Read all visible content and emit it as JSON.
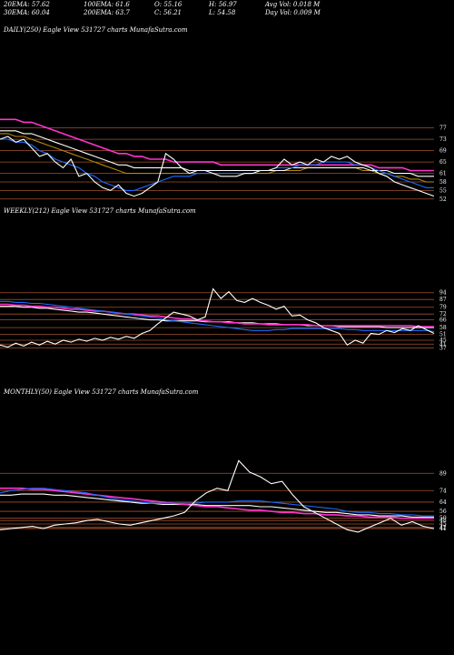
{
  "header": {
    "row1": [
      "20EMA: 57.62",
      "100EMA: 61.6",
      "O: 55.16",
      "H: 56.97",
      "Avg Vol: 0.018  M"
    ],
    "row2": [
      "30EMA: 60.04",
      "200EMA: 63.7",
      "C: 56.21",
      "L: 54.58",
      "Day Vol: 0.009 M"
    ]
  },
  "chart_data": [
    {
      "type": "line",
      "label": "DAILY(250) Eagle  View  531727 charts MunafaSutra.com",
      "ylim": [
        50,
        82
      ],
      "yticks": [
        "77",
        "73",
        "69",
        "65",
        "61",
        "58",
        "55",
        "52"
      ],
      "yticks_values": [
        77,
        73,
        69,
        65,
        61,
        58,
        55,
        52
      ],
      "series": [
        {
          "name": "price",
          "color": "#ffffff",
          "values": [
            73,
            74,
            72,
            73,
            70,
            67,
            68,
            65,
            63,
            66,
            60,
            61,
            58,
            56,
            55,
            57,
            54,
            53,
            54,
            56,
            58,
            68,
            66,
            63,
            61,
            62,
            62,
            61,
            60,
            60,
            60,
            61,
            61,
            62,
            62,
            63,
            66,
            64,
            65,
            64,
            66,
            65,
            67,
            66,
            67,
            65,
            64,
            63,
            61,
            60,
            58,
            57,
            56,
            55,
            54,
            53
          ]
        },
        {
          "name": "ema-fast",
          "color": "#1a6bff",
          "values": [
            73,
            73,
            72,
            72,
            71,
            69,
            68,
            66,
            65,
            64,
            63,
            61,
            60,
            58,
            57,
            56,
            55,
            55,
            56,
            57,
            58,
            59,
            60,
            60,
            60,
            61,
            61,
            61,
            61,
            61,
            61,
            61,
            61,
            62,
            62,
            63,
            63,
            63,
            64,
            64,
            64,
            65,
            65,
            65,
            65,
            64,
            64,
            63,
            62,
            61,
            60,
            59,
            58,
            57,
            56,
            56
          ]
        },
        {
          "name": "ema-200",
          "color": "#ff33cc",
          "values": [
            80,
            80,
            80,
            79,
            79,
            78,
            77,
            76,
            75,
            74,
            73,
            72,
            71,
            70,
            69,
            68,
            68,
            67,
            67,
            66,
            66,
            66,
            65,
            65,
            65,
            65,
            65,
            65,
            64,
            64,
            64,
            64,
            64,
            64,
            64,
            64,
            64,
            64,
            64,
            64,
            64,
            64,
            64,
            64,
            64,
            64,
            64,
            64,
            63,
            63,
            63,
            63,
            62,
            62,
            62,
            62
          ]
        },
        {
          "name": "ema-100",
          "color": "#ffffff",
          "values": [
            76,
            76,
            76,
            75,
            75,
            74,
            73,
            72,
            71,
            70,
            69,
            68,
            67,
            66,
            65,
            64,
            64,
            63,
            63,
            63,
            63,
            63,
            63,
            63,
            62,
            62,
            62,
            62,
            62,
            62,
            62,
            62,
            62,
            62,
            62,
            62,
            62,
            63,
            63,
            63,
            63,
            63,
            63,
            63,
            63,
            63,
            63,
            62,
            62,
            62,
            61,
            61,
            61,
            60,
            60,
            60
          ]
        },
        {
          "name": "ema-50",
          "color": "#b8860b",
          "values": [
            75,
            75,
            74,
            74,
            73,
            72,
            71,
            70,
            69,
            68,
            67,
            66,
            65,
            64,
            63,
            62,
            61,
            61,
            61,
            61,
            61,
            61,
            61,
            61,
            61,
            61,
            61,
            61,
            61,
            61,
            61,
            61,
            61,
            61,
            61,
            62,
            62,
            62,
            62,
            63,
            63,
            63,
            63,
            63,
            63,
            63,
            62,
            62,
            61,
            61,
            60,
            60,
            59,
            59,
            58,
            58
          ]
        }
      ]
    },
    {
      "type": "line",
      "label": "WEEKLY(212) Eagle  View  531727 charts MunafaSutra.com",
      "ylim": [
        30,
        105
      ],
      "yticks": [
        "94",
        "87",
        "79",
        "72",
        "66",
        "58",
        "51",
        "45",
        "41",
        "37"
      ],
      "yticks_values": [
        94,
        87,
        79,
        72,
        66,
        58,
        51,
        45,
        41,
        37
      ],
      "series": [
        {
          "name": "price",
          "color": "#ffffff",
          "values": [
            40,
            38,
            42,
            39,
            43,
            40,
            44,
            41,
            45,
            43,
            46,
            44,
            47,
            45,
            48,
            46,
            49,
            47,
            52,
            55,
            62,
            68,
            74,
            72,
            70,
            66,
            69,
            98,
            88,
            95,
            86,
            84,
            88,
            84,
            81,
            77,
            80,
            70,
            71,
            66,
            63,
            58,
            55,
            52,
            40,
            45,
            42,
            52,
            51,
            55,
            53,
            57,
            55,
            60,
            56,
            52
          ]
        },
        {
          "name": "ema-fast",
          "color": "#1a6bff",
          "values": [
            85,
            85,
            84,
            84,
            83,
            83,
            82,
            81,
            80,
            79,
            78,
            77,
            76,
            75,
            74,
            73,
            72,
            71,
            70,
            69,
            68,
            66,
            65,
            64,
            63,
            62,
            61,
            60,
            59,
            58,
            57,
            56,
            55,
            55,
            55,
            56,
            56,
            57,
            57,
            57,
            57,
            57,
            57,
            57,
            56,
            56,
            55,
            55,
            55,
            55,
            55,
            55,
            55,
            55,
            55,
            54
          ]
        },
        {
          "name": "ema-200",
          "color": "#ff33cc",
          "values": [
            82,
            82,
            81,
            81,
            80,
            80,
            79,
            79,
            78,
            77,
            77,
            76,
            75,
            75,
            74,
            73,
            72,
            72,
            71,
            70,
            70,
            69,
            68,
            67,
            67,
            66,
            65,
            64,
            64,
            63,
            63,
            62,
            62,
            62,
            61,
            61,
            61,
            61,
            61,
            61,
            60,
            60,
            60,
            60,
            60,
            60,
            60,
            60,
            60,
            60,
            60,
            60,
            60,
            59,
            59,
            59
          ]
        },
        {
          "name": "ema-100",
          "color": "#ffffff",
          "values": [
            80,
            80,
            80,
            79,
            79,
            78,
            78,
            77,
            76,
            75,
            74,
            74,
            73,
            72,
            71,
            70,
            69,
            68,
            67,
            66,
            66,
            65,
            65,
            65,
            65,
            65,
            64,
            64,
            64,
            64,
            63,
            63,
            63,
            62,
            62,
            62,
            61,
            61,
            61,
            60,
            60,
            60,
            60,
            59,
            59,
            59,
            59,
            59,
            59,
            58,
            58,
            58,
            58,
            58,
            58,
            58
          ]
        }
      ]
    },
    {
      "type": "line",
      "label": "MONTHLY(50) Eagle  View  531727 charts MunafaSutra.com",
      "ylim": [
        30,
        105
      ],
      "yticks": [
        "89",
        "74",
        "64",
        "56",
        "50",
        "48",
        "45",
        "42",
        "41"
      ],
      "yticks_values": [
        89,
        74,
        64,
        56,
        50,
        48,
        45,
        42,
        41
      ],
      "series": [
        {
          "name": "price",
          "color": "#ffffff",
          "values": [
            40,
            41,
            42,
            43,
            41,
            44,
            45,
            46,
            48,
            49,
            47,
            45,
            44,
            46,
            48,
            50,
            52,
            55,
            65,
            72,
            76,
            74,
            100,
            90,
            86,
            80,
            82,
            70,
            60,
            55,
            50,
            45,
            40,
            38,
            42,
            46,
            50,
            44,
            47,
            43,
            41
          ]
        },
        {
          "name": "ema-fast",
          "color": "#1a6bff",
          "values": [
            72,
            74,
            75,
            76,
            76,
            75,
            74,
            73,
            72,
            70,
            68,
            66,
            65,
            64,
            63,
            63,
            63,
            63,
            63,
            64,
            64,
            64,
            65,
            65,
            65,
            64,
            63,
            62,
            61,
            60,
            59,
            58,
            56,
            55,
            55,
            54,
            54,
            53,
            53,
            52,
            52
          ]
        },
        {
          "name": "ema-200",
          "color": "#ff33cc",
          "values": [
            76,
            76,
            76,
            75,
            75,
            74,
            73,
            72,
            71,
            70,
            69,
            68,
            67,
            66,
            65,
            64,
            63,
            62,
            61,
            60,
            60,
            59,
            58,
            57,
            57,
            56,
            55,
            55,
            54,
            54,
            53,
            53,
            52,
            52,
            51,
            51,
            51,
            50,
            50,
            50,
            50
          ]
        },
        {
          "name": "ema-100",
          "color": "#ffffff",
          "values": [
            70,
            70,
            71,
            71,
            71,
            70,
            70,
            69,
            68,
            67,
            66,
            65,
            64,
            63,
            63,
            62,
            62,
            62,
            62,
            61,
            61,
            61,
            61,
            61,
            60,
            60,
            59,
            58,
            57,
            56,
            55,
            55,
            54,
            53,
            53,
            52,
            52,
            52,
            51,
            51,
            51
          ]
        }
      ]
    }
  ]
}
